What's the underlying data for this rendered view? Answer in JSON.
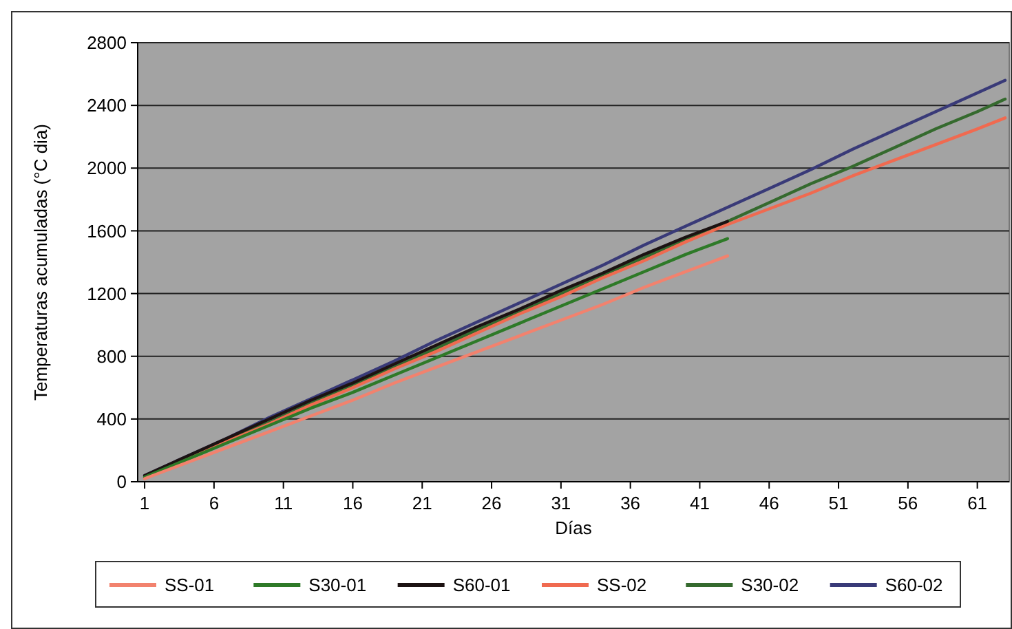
{
  "chart_data": {
    "type": "line",
    "xlabel": "Días",
    "ylabel": "Temperaturas acumuladas (°C dia)",
    "xlim": [
      0.5,
      63.3
    ],
    "xticks": [
      1,
      6,
      11,
      16,
      21,
      26,
      31,
      36,
      41,
      46,
      51,
      56,
      61
    ],
    "ylim": [
      0,
      2800
    ],
    "yticks": [
      0,
      400,
      800,
      1200,
      1600,
      2000,
      2400,
      2800
    ],
    "grid": "y",
    "legend": "bottom",
    "marker": "none",
    "line_style": "solid",
    "series": [
      {
        "name": "SS-01",
        "color": "#f2826e",
        "x": [
          1,
          4,
          7,
          10,
          13,
          16,
          19,
          22,
          25,
          28,
          31,
          34,
          37,
          40,
          43
        ],
        "values": [
          20,
          120,
          220,
          320,
          420,
          520,
          630,
          730,
          830,
          930,
          1030,
          1130,
          1240,
          1340,
          1440
        ]
      },
      {
        "name": "S30-01",
        "color": "#2e7a28",
        "x": [
          1,
          4,
          7,
          10,
          13,
          16,
          19,
          22,
          25,
          28,
          31,
          34,
          37,
          40,
          43
        ],
        "values": [
          30,
          140,
          250,
          360,
          470,
          570,
          680,
          790,
          900,
          1010,
          1120,
          1230,
          1340,
          1450,
          1550
        ]
      },
      {
        "name": "S60-01",
        "color": "#1c1212",
        "x": [
          1,
          4,
          7,
          10,
          13,
          16,
          19,
          22,
          25,
          28,
          31,
          34,
          37,
          40,
          43
        ],
        "values": [
          40,
          160,
          280,
          400,
          520,
          630,
          750,
          870,
          990,
          1100,
          1220,
          1330,
          1450,
          1560,
          1660
        ]
      },
      {
        "name": "SS-02",
        "color": "#f06a50",
        "x": [
          1,
          4,
          7,
          10,
          13,
          16,
          19,
          22,
          25,
          28,
          31,
          34,
          37,
          40,
          43,
          46,
          49,
          52,
          55,
          58,
          61,
          63
        ],
        "values": [
          20,
          140,
          260,
          370,
          490,
          600,
          720,
          830,
          950,
          1070,
          1180,
          1300,
          1410,
          1530,
          1640,
          1740,
          1840,
          1950,
          2050,
          2150,
          2250,
          2320
        ]
      },
      {
        "name": "S30-02",
        "color": "#356a2e",
        "x": [
          1,
          4,
          7,
          10,
          13,
          16,
          19,
          22,
          25,
          28,
          31,
          34,
          37,
          40,
          43,
          46,
          49,
          52,
          55,
          58,
          61,
          63
        ],
        "values": [
          30,
          150,
          270,
          380,
          500,
          620,
          730,
          850,
          970,
          1080,
          1200,
          1320,
          1430,
          1550,
          1660,
          1780,
          1900,
          2010,
          2130,
          2250,
          2360,
          2440
        ]
      },
      {
        "name": "S60-02",
        "color": "#393a78",
        "x": [
          1,
          4,
          7,
          10,
          13,
          16,
          19,
          22,
          25,
          28,
          31,
          34,
          37,
          40,
          43,
          46,
          49,
          52,
          55,
          58,
          61,
          63
        ],
        "values": [
          40,
          160,
          280,
          410,
          530,
          650,
          770,
          900,
          1020,
          1140,
          1260,
          1380,
          1510,
          1630,
          1750,
          1870,
          1990,
          2120,
          2240,
          2360,
          2480,
          2560
        ]
      }
    ]
  }
}
